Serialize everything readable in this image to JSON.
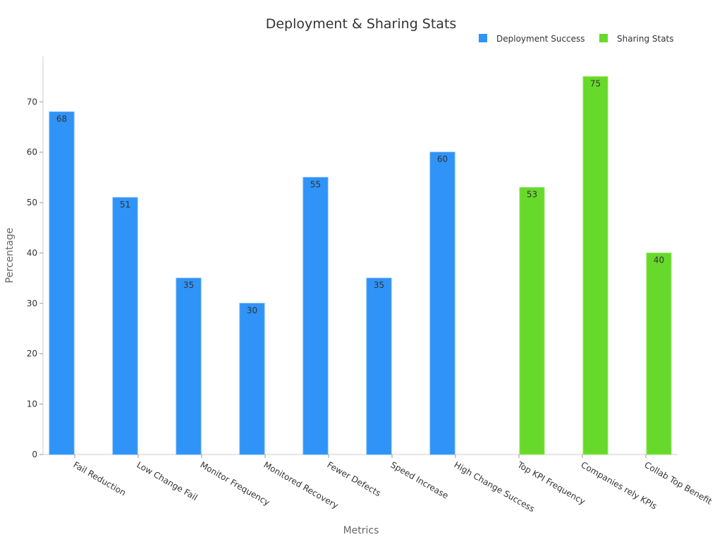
{
  "chart_data": {
    "type": "bar",
    "title": "Deployment & Sharing Stats",
    "xlabel": "Metrics",
    "ylabel": "Percentage",
    "ylim": [
      0,
      79
    ],
    "yticks": [
      0,
      10,
      20,
      30,
      40,
      50,
      60,
      70
    ],
    "grid": false,
    "legend_position": "top-right",
    "categories": [
      "Fail Reduction",
      "Low Change Fail",
      "Monitor Frequency",
      "Monitored Recovery",
      "Fewer Defects",
      "Speed Increase",
      "High Change Success",
      "Top KPI Frequency",
      "Companies rely KPIs",
      "Collab Top Benefit"
    ],
    "series": [
      {
        "name": "Deployment Success",
        "color": "#2f93f8",
        "values": [
          68,
          51,
          35,
          30,
          55,
          35,
          60,
          null,
          null,
          null
        ]
      },
      {
        "name": "Sharing Stats",
        "color": "#67d92a",
        "values": [
          null,
          null,
          null,
          null,
          null,
          null,
          null,
          53,
          75,
          40
        ]
      }
    ]
  }
}
